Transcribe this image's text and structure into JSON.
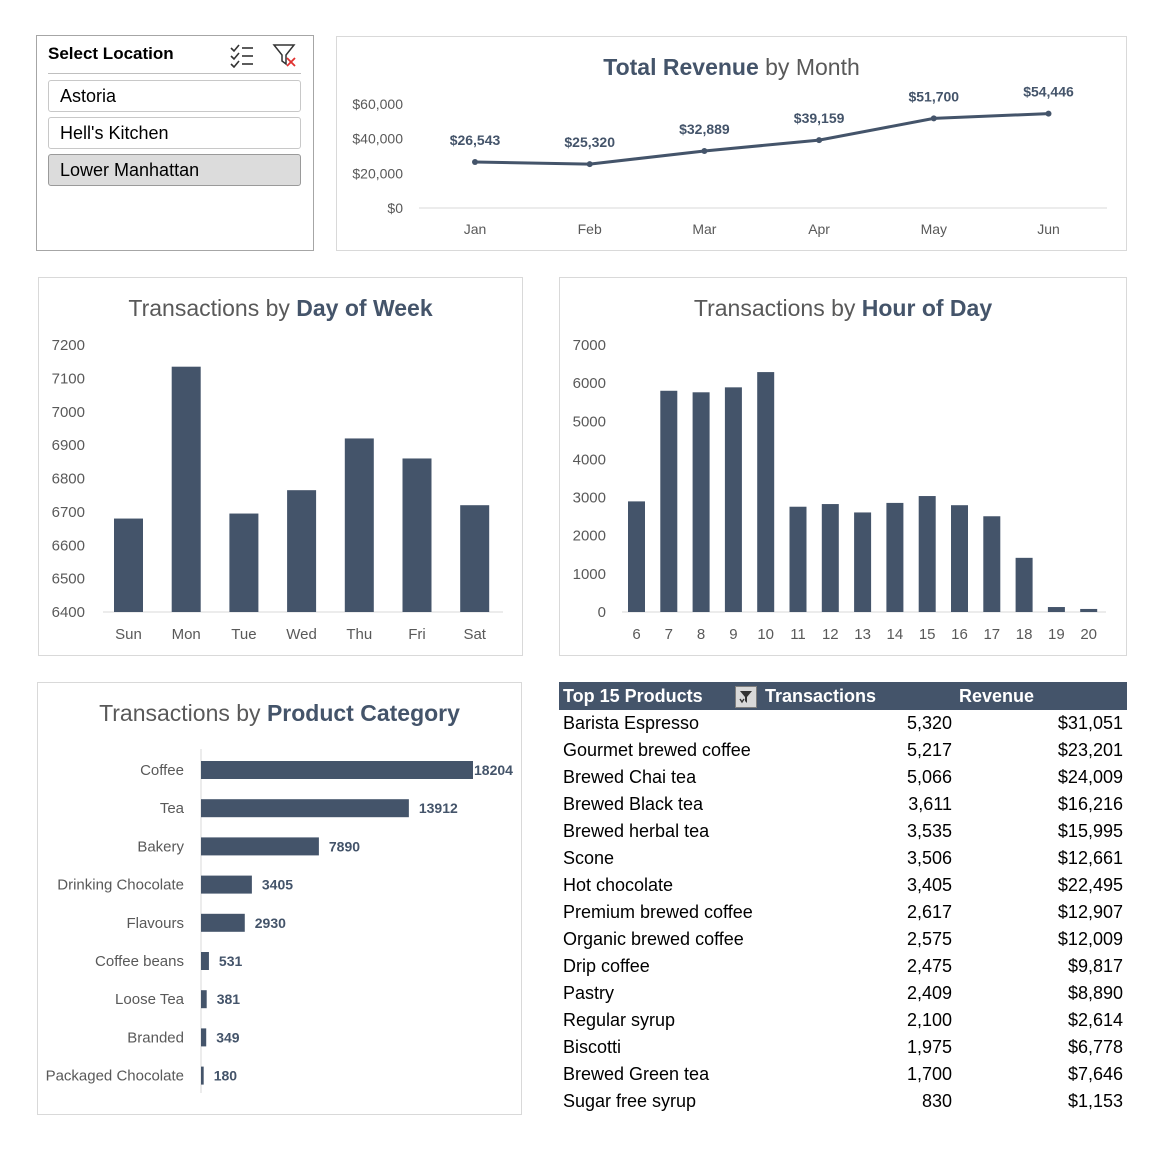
{
  "colors": {
    "bar": "#44546a",
    "title_bold": "#44546a",
    "title_normal": "#595959",
    "table_header": "#44546a"
  },
  "slicer": {
    "title": "Select Location",
    "icons": [
      "multi-select-icon",
      "clear-filter-icon"
    ],
    "items": [
      {
        "label": "Astoria",
        "selected": false
      },
      {
        "label": "Hell's Kitchen",
        "selected": false
      },
      {
        "label": "Lower Manhattan",
        "selected": true
      }
    ]
  },
  "charts": {
    "revenue": {
      "title_bold": "Total Revenue",
      "title_rest": " by Month"
    },
    "day": {
      "title_pre": "Transactions by ",
      "title_bold": "Day of Week"
    },
    "hour": {
      "title_pre": "Transactions by ",
      "title_bold": "Hour of Day"
    },
    "category": {
      "title_pre": "Transactions by ",
      "title_bold": "Product Category"
    }
  },
  "chart_data": [
    {
      "id": "revenue",
      "type": "line",
      "title": "Total Revenue by Month",
      "categories": [
        "Jan",
        "Feb",
        "Mar",
        "Apr",
        "May",
        "Jun"
      ],
      "values": [
        26543,
        25320,
        32889,
        39159,
        51700,
        54446
      ],
      "data_labels": [
        "$26,543",
        "$25,320",
        "$32,889",
        "$39,159",
        "$51,700",
        "$54,446"
      ],
      "ylim": [
        0,
        60000
      ],
      "yticks": [
        0,
        20000,
        40000,
        60000
      ],
      "ytick_labels": [
        "$0",
        "$20,000",
        "$40,000",
        "$60,000"
      ],
      "grid": false
    },
    {
      "id": "day",
      "type": "bar",
      "title": "Transactions by Day of Week",
      "categories": [
        "Sun",
        "Mon",
        "Tue",
        "Wed",
        "Thu",
        "Fri",
        "Sat"
      ],
      "values": [
        6680,
        7135,
        6695,
        6765,
        6920,
        6860,
        6720
      ],
      "ylim": [
        6400,
        7200
      ],
      "yticks": [
        6400,
        6500,
        6600,
        6700,
        6800,
        6900,
        7000,
        7100,
        7200
      ]
    },
    {
      "id": "hour",
      "type": "bar",
      "title": "Transactions by Hour of Day",
      "categories": [
        "6",
        "7",
        "8",
        "9",
        "10",
        "11",
        "12",
        "13",
        "14",
        "15",
        "16",
        "17",
        "18",
        "19",
        "20"
      ],
      "values": [
        2900,
        5800,
        5760,
        5890,
        6290,
        2760,
        2830,
        2610,
        2860,
        3040,
        2800,
        2510,
        1420,
        130,
        80
      ],
      "ylim": [
        0,
        7000
      ],
      "yticks": [
        0,
        1000,
        2000,
        3000,
        4000,
        5000,
        6000,
        7000
      ]
    },
    {
      "id": "category",
      "type": "bar",
      "orientation": "horizontal",
      "title": "Transactions by Product Category",
      "categories": [
        "Coffee",
        "Tea",
        "Bakery",
        "Drinking Chocolate",
        "Flavours",
        "Coffee beans",
        "Loose Tea",
        "Branded",
        "Packaged Chocolate"
      ],
      "values": [
        18204,
        13912,
        7890,
        3405,
        2930,
        531,
        381,
        349,
        180
      ],
      "data_labels": [
        "18204",
        "13912",
        "7890",
        "3405",
        "2930",
        "531",
        "381",
        "349",
        "180"
      ]
    }
  ],
  "table": {
    "headers": [
      "Top 15 Products",
      "Transactions",
      "Revenue"
    ],
    "rows": [
      [
        "Barista Espresso",
        "5,320",
        "$31,051"
      ],
      [
        "Gourmet brewed coffee",
        "5,217",
        "$23,201"
      ],
      [
        "Brewed Chai tea",
        "5,066",
        "$24,009"
      ],
      [
        "Brewed Black tea",
        "3,611",
        "$16,216"
      ],
      [
        "Brewed herbal tea",
        "3,535",
        "$15,995"
      ],
      [
        "Scone",
        "3,506",
        "$12,661"
      ],
      [
        "Hot chocolate",
        "3,405",
        "$22,495"
      ],
      [
        "Premium brewed coffee",
        "2,617",
        "$12,907"
      ],
      [
        "Organic brewed coffee",
        "2,575",
        "$12,009"
      ],
      [
        "Drip coffee",
        "2,475",
        "$9,817"
      ],
      [
        "Pastry",
        "2,409",
        "$8,890"
      ],
      [
        "Regular syrup",
        "2,100",
        "$2,614"
      ],
      [
        "Biscotti",
        "1,975",
        "$6,778"
      ],
      [
        "Brewed Green tea",
        "1,700",
        "$7,646"
      ],
      [
        "Sugar free syrup",
        "830",
        "$1,153"
      ]
    ]
  }
}
